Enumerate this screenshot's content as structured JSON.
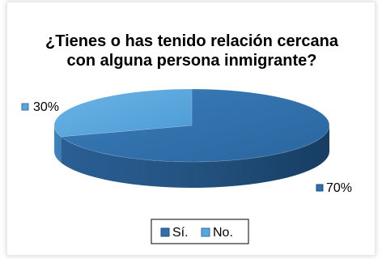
{
  "chart_data": {
    "type": "pie",
    "title_lines": [
      "¿Tienes o has tenido relación cercana",
      "con alguna persona inmigrante?"
    ],
    "categories": [
      "Sí.",
      "No."
    ],
    "values": [
      70,
      30
    ],
    "data_labels": [
      "70%",
      "30%"
    ],
    "legend_position": "bottom",
    "style": "3d",
    "colors": [
      "#2f6faa",
      "#5aa6dc"
    ]
  }
}
